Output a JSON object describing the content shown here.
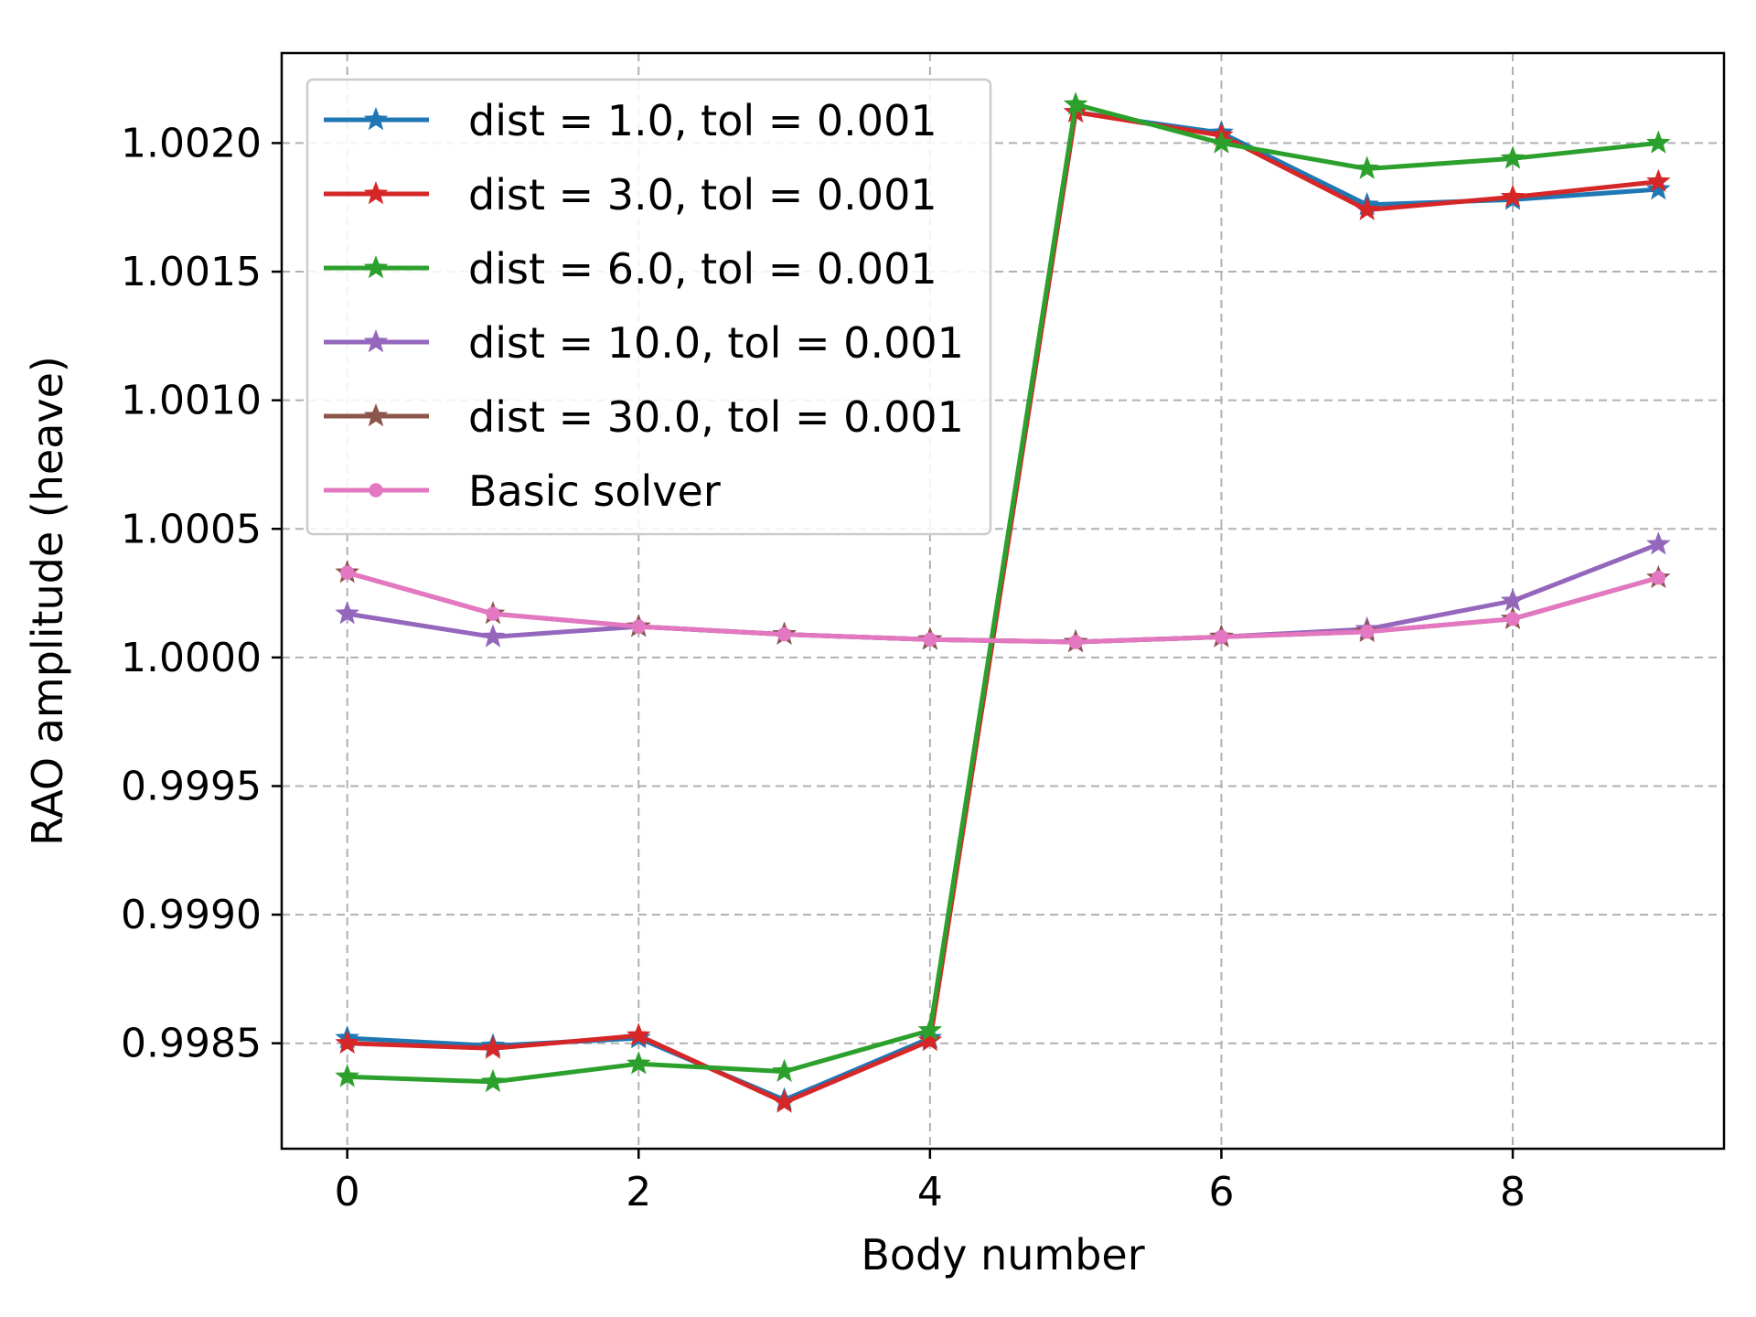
{
  "chart_data": {
    "type": "line",
    "xlabel": "Body number",
    "ylabel": "RAO amplitude (heave)",
    "xlim": [
      -0.45,
      9.45
    ],
    "ylim": [
      0.99809,
      1.00235
    ],
    "x_ticks": [
      0,
      2,
      4,
      6,
      8
    ],
    "x_tick_labels": [
      "0",
      "2",
      "4",
      "6",
      "8"
    ],
    "y_ticks": [
      0.9985,
      0.999,
      0.9995,
      1.0,
      1.0005,
      1.001,
      1.0015,
      1.002
    ],
    "y_tick_labels": [
      "0.9985",
      "0.9990",
      "0.9995",
      "1.0000",
      "1.0005",
      "1.0010",
      "1.0015",
      "1.0020"
    ],
    "grid": true,
    "legend_position": "top-left",
    "x": [
      0,
      1,
      2,
      3,
      4,
      5,
      6,
      7,
      8,
      9
    ],
    "series": [
      {
        "name": "dist = 1.0, tol = 0.001",
        "color": "#1f77b4",
        "marker": "star",
        "values": [
          0.99852,
          0.99849,
          0.99852,
          0.99828,
          0.99852,
          1.00212,
          1.00204,
          1.00176,
          1.00178,
          1.00182
        ]
      },
      {
        "name": "dist = 3.0, tol = 0.001",
        "color": "#d62728",
        "marker": "star",
        "values": [
          0.9985,
          0.99848,
          0.99853,
          0.99827,
          0.99851,
          1.00212,
          1.00203,
          1.00174,
          1.00179,
          1.00185
        ]
      },
      {
        "name": "dist = 6.0, tol = 0.001",
        "color": "#2ca02c",
        "marker": "star",
        "values": [
          0.99837,
          0.99835,
          0.99842,
          0.99839,
          0.99855,
          1.00215,
          1.002,
          1.0019,
          1.00194,
          1.002
        ]
      },
      {
        "name": "dist = 10.0, tol = 0.001",
        "color": "#9467bd",
        "marker": "star",
        "values": [
          1.00017,
          1.00008,
          1.00012,
          1.00009,
          1.00007,
          1.00006,
          1.00008,
          1.00011,
          1.00022,
          1.00044
        ]
      },
      {
        "name": "dist = 30.0, tol = 0.001",
        "color": "#8c564b",
        "marker": "star",
        "values": [
          1.00033,
          1.00017,
          1.00012,
          1.00009,
          1.00007,
          1.00006,
          1.00008,
          1.0001,
          1.00015,
          1.00031
        ]
      },
      {
        "name": "Basic solver",
        "color": "#e377c2",
        "marker": "circle",
        "values": [
          1.00033,
          1.00017,
          1.00012,
          1.00009,
          1.00007,
          1.00006,
          1.00008,
          1.0001,
          1.00015,
          1.00031
        ]
      }
    ]
  }
}
